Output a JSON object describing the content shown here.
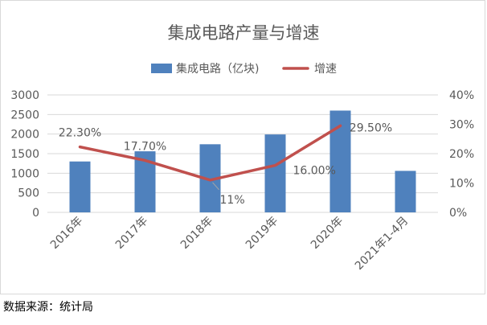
{
  "chart_data": {
    "type": "bar",
    "title": "集成电路产量与增速",
    "categories": [
      "2016年",
      "2017年",
      "2018年",
      "2019年",
      "2020年",
      "2021年1-4月"
    ],
    "series": [
      {
        "name": "集成电路（亿块)",
        "type": "bar",
        "axis": "left",
        "values": [
          1300,
          1560,
          1740,
          1990,
          2600,
          1060
        ]
      },
      {
        "name": "增速",
        "type": "line",
        "axis": "right",
        "values": [
          22.3,
          17.7,
          11,
          16.0,
          29.5,
          null
        ],
        "labels": [
          "22.30%",
          "17.70%",
          "11%",
          "16.00%",
          "29.50%",
          ""
        ]
      }
    ],
    "y_left": {
      "min": 0,
      "max": 3000,
      "step": 500,
      "ticks": [
        "0",
        "500",
        "1000",
        "1500",
        "2000",
        "2500",
        "3000"
      ]
    },
    "y_right": {
      "min": 0,
      "max": 40,
      "step": 10,
      "ticks": [
        "0%",
        "10%",
        "20%",
        "30%",
        "40%"
      ]
    },
    "grid": true,
    "legend_position": "top",
    "colors": {
      "bar": "#4f81bd",
      "line": "#c0504d",
      "grid": "#d9d9d9",
      "text": "#595959"
    }
  },
  "source": "数据来源：统计局"
}
